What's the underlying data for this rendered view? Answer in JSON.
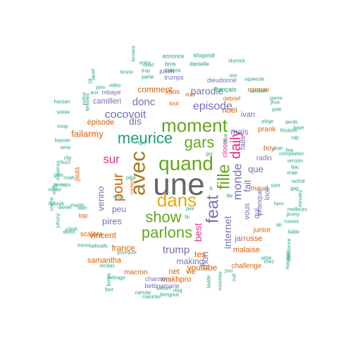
{
  "colors": {
    "teal": "#1b9e77",
    "orange": "#d95f02",
    "purple": "#7570b3",
    "magenta": "#e7298a",
    "green": "#66a61e",
    "gold": "#e6ab02",
    "brown": "#a6761d",
    "gray": "#666666"
  },
  "words": [
    {
      "text": "une",
      "color": "gray"
    },
    {
      "text": "avec",
      "color": "brown"
    },
    {
      "text": "quand",
      "color": "green"
    },
    {
      "text": "dans",
      "color": "gold"
    },
    {
      "text": "moment",
      "color": "green"
    },
    {
      "text": "meurice",
      "color": "teal"
    },
    {
      "text": "gars",
      "color": "green"
    },
    {
      "text": "fille",
      "color": "green"
    },
    {
      "text": "show",
      "color": "green"
    },
    {
      "text": "parlons",
      "color": "green"
    },
    {
      "text": "feat",
      "color": "purple"
    },
    {
      "text": "daily",
      "color": "magenta"
    },
    {
      "text": "pour",
      "color": "orange"
    },
    {
      "text": "sur",
      "color": "magenta"
    },
    {
      "text": "episode",
      "color": "purple"
    },
    {
      "text": "cocovoit",
      "color": "purple"
    },
    {
      "text": "donc",
      "color": "purple"
    },
    {
      "text": "parodie",
      "color": "purple"
    },
    {
      "text": "trump",
      "color": "purple"
    },
    {
      "text": "monde",
      "color": "purple"
    },
    {
      "text": "internet",
      "color": "purple"
    },
    {
      "text": "best",
      "color": "magenta"
    },
    {
      "text": "verino",
      "color": "purple"
    },
    {
      "text": "dis",
      "color": "purple"
    },
    {
      "text": "failarmy",
      "color": "orange"
    },
    {
      "text": "pires",
      "color": "purple"
    },
    {
      "text": "mais",
      "color": "purple"
    },
    {
      "text": "comment",
      "color": "orange"
    },
    {
      "text": "que",
      "color": "purple"
    },
    {
      "text": "fait",
      "color": "purple"
    },
    {
      "text": "peu",
      "color": "purple"
    },
    {
      "text": "mon",
      "color": "purple"
    },
    {
      "text": "youtube",
      "color": "orange"
    },
    {
      "text": "tes",
      "color": "orange"
    },
    {
      "text": "making",
      "color": "purple"
    },
    {
      "text": "vincent",
      "color": "orange"
    },
    {
      "text": "samantha",
      "color": "orange"
    },
    {
      "text": "france",
      "color": "orange"
    },
    {
      "text": "noël",
      "color": "orange"
    },
    {
      "text": "épisode",
      "color": "orange"
    },
    {
      "text": "camilleri",
      "color": "purple"
    },
    {
      "text": "ivan",
      "color": "purple"
    },
    {
      "text": "fails",
      "color": "purple"
    },
    {
      "text": "radio",
      "color": "purple"
    },
    {
      "text": "maud",
      "color": "orange"
    },
    {
      "text": "vous",
      "color": "purple"
    },
    {
      "text": "qui",
      "color": "purple"
    },
    {
      "text": "look",
      "color": "purple"
    },
    {
      "text": "pranque",
      "color": "purple"
    },
    {
      "text": "jai",
      "color": "purple"
    },
    {
      "text": "malaise",
      "color": "orange"
    },
    {
      "text": "net",
      "color": "orange"
    },
    {
      "text": "vie",
      "color": "orange"
    },
    {
      "text": "makhpro",
      "color": "orange"
    },
    {
      "text": "macron",
      "color": "orange"
    },
    {
      "text": "scalera",
      "color": "orange"
    },
    {
      "text": "jsuis",
      "color": "orange"
    },
    {
      "text": "closer",
      "color": "magenta"
    },
    {
      "text": "prank",
      "color": "orange"
    },
    {
      "text": "boy",
      "color": "orange"
    },
    {
      "text": "russe",
      "color": "orange"
    },
    {
      "text": "ksos",
      "color": "orange"
    },
    {
      "text": "tout",
      "color": "orange"
    },
    {
      "text": "norman",
      "color": "orange"
    },
    {
      "text": "challenge",
      "color": "orange"
    },
    {
      "text": "mbaye",
      "color": "purple"
    },
    {
      "text": "junior",
      "color": "orange"
    },
    {
      "text": "top",
      "color": "orange"
    },
    {
      "text": "bettinamarie",
      "color": "purple"
    },
    {
      "text": "chanson",
      "color": "purple"
    },
    {
      "text": "dieudonné",
      "color": "purple"
    },
    {
      "text": "trumps",
      "color": "purple"
    },
    {
      "text": "julien",
      "color": "purple"
    },
    {
      "text": "français",
      "color": "teal"
    },
    {
      "text": "debrief",
      "color": "orange"
    },
    {
      "text": "suis",
      "color": "orange"
    },
    {
      "text": "annonce",
      "color": "teal"
    },
    {
      "text": "khojandi",
      "color": "teal"
    },
    {
      "text": "skyrock",
      "color": "teal"
    },
    {
      "text": "bros",
      "color": "teal"
    },
    {
      "text": "danielle",
      "color": "teal"
    },
    {
      "text": "vidéos",
      "color": "teal"
    },
    {
      "text": "court",
      "color": "teal"
    },
    {
      "text": "trop",
      "color": "teal"
    },
    {
      "text": "partie",
      "color": "teal"
    },
    {
      "text": "bruno",
      "color": "teal"
    },
    {
      "text": "vidéo",
      "color": "teal"
    },
    {
      "text": "john",
      "color": "teal"
    },
    {
      "text": "squeezie",
      "color": "teal"
    },
    {
      "text": "sambich",
      "color": "teal"
    },
    {
      "text": "pierre",
      "color": "teal"
    },
    {
      "text": "jhon",
      "color": "teal"
    },
    {
      "text": "pote",
      "color": "teal"
    },
    {
      "text": "piège",
      "color": "teal"
    },
    {
      "text": "jean",
      "color": "teal"
    },
    {
      "text": "compilation",
      "color": "teal"
    },
    {
      "text": "version",
      "color": "teal"
    },
    {
      "text": "sont",
      "color": "teal"
    },
    {
      "text": "hero",
      "color": "teal"
    },
    {
      "text": "pire",
      "color": "teal"
    },
    {
      "text": "fin",
      "color": "teal"
    },
    {
      "text": "gui",
      "color": "teal"
    },
    {
      "text": "life",
      "color": "teal"
    },
    {
      "text": "ski",
      "color": "teal"
    },
    {
      "text": "chez",
      "color": "teal"
    },
    {
      "text": "nous",
      "color": "teal"
    },
    {
      "text": "bien",
      "color": "teal"
    },
    {
      "text": "clash",
      "color": "teal"
    },
    {
      "text": "martin",
      "color": "teal"
    },
    {
      "text": "daniel",
      "color": "teal"
    },
    {
      "text": "noah",
      "color": "teal"
    },
    {
      "text": "oups",
      "color": "teal"
    },
    {
      "text": "gens",
      "color": "teal"
    },
    {
      "text": "gros",
      "color": "teal"
    },
    {
      "text": "buzz",
      "color": "teal"
    },
    {
      "text": "clip",
      "color": "teal"
    },
    {
      "text": "sexe",
      "color": "teal"
    },
    {
      "text": "soirée",
      "color": "teal"
    },
    {
      "text": "keyvan",
      "color": "teal"
    },
    {
      "text": "coup",
      "color": "teal"
    },
    {
      "text": "police",
      "color": "teal"
    },
    {
      "text": "femmes",
      "color": "teal"
    },
    {
      "text": "hassan",
      "color": "teal"
    },
    {
      "text": "mister",
      "color": "teal"
    },
    {
      "text": "ludovik",
      "color": "teal"
    },
    {
      "text": "maxenss",
      "color": "teal"
    },
    {
      "text": "mcfly",
      "color": "teal"
    },
    {
      "text": "contre",
      "color": "teal"
    },
    {
      "text": "johnny",
      "color": "teal"
    },
    {
      "text": "direct",
      "color": "teal"
    },
    {
      "text": "trevor",
      "color": "teal"
    },
    {
      "text": "sebvalls",
      "color": "teal"
    },
    {
      "text": "pourquoi",
      "color": "teal"
    },
    {
      "text": "nicolas",
      "color": "teal"
    },
    {
      "text": "bonus",
      "color": "teal"
    },
    {
      "text": "font",
      "color": "teal"
    },
    {
      "text": "métrage",
      "color": "teal"
    },
    {
      "text": "canular",
      "color": "teal"
    },
    {
      "text": "manicke",
      "color": "teal"
    },
    {
      "text": "bengous",
      "color": "teal"
    },
    {
      "text": "saison",
      "color": "teal"
    },
    {
      "text": "vlog",
      "color": "teal"
    },
    {
      "text": "lavide",
      "color": "teal"
    },
    {
      "text": "nouveau",
      "color": "teal"
    },
    {
      "text": "jour",
      "color": "teal"
    },
    {
      "text": "nuit",
      "color": "teal"
    },
    {
      "text": "série",
      "color": "teal"
    },
    {
      "text": "dieudonne",
      "color": "teal"
    },
    {
      "text": "manage",
      "color": "teal"
    },
    {
      "text": "faible",
      "color": "teal"
    },
    {
      "text": "russes",
      "color": "teal"
    },
    {
      "text": "jimmy",
      "color": "teal"
    },
    {
      "text": "meilleurs",
      "color": "teal"
    },
    {
      "text": "minutes",
      "color": "teal"
    },
    {
      "text": "rachid",
      "color": "teal"
    },
    {
      "text": "gag",
      "color": "teal"
    },
    {
      "text": "bac",
      "color": "teal"
    },
    {
      "text": "vraie",
      "color": "teal"
    },
    {
      "text": "perds",
      "color": "teal"
    },
    {
      "text": "lhistoire",
      "color": "teal"
    },
    {
      "text": "rap",
      "color": "teal"
    },
    {
      "text": "live",
      "color": "teal"
    },
    {
      "text": "baye",
      "color": "teal"
    },
    {
      "text": "entre",
      "color": "teal"
    },
    {
      "text": "lenvers",
      "color": "teal"
    },
    {
      "text": "ça",
      "color": "teal"
    },
    {
      "text": "aux",
      "color": "teal"
    },
    {
      "text": "ton",
      "color": "teal"
    },
    {
      "text": "père",
      "color": "teal"
    },
    {
      "text": "content",
      "color": "orange"
    },
    {
      "text": "son",
      "color": "teal"
    },
    {
      "text": "love",
      "color": "teal"
    },
    {
      "text": "lc",
      "color": "teal"
    },
    {
      "text": "sauet",
      "color": "teal"
    }
  ]
}
